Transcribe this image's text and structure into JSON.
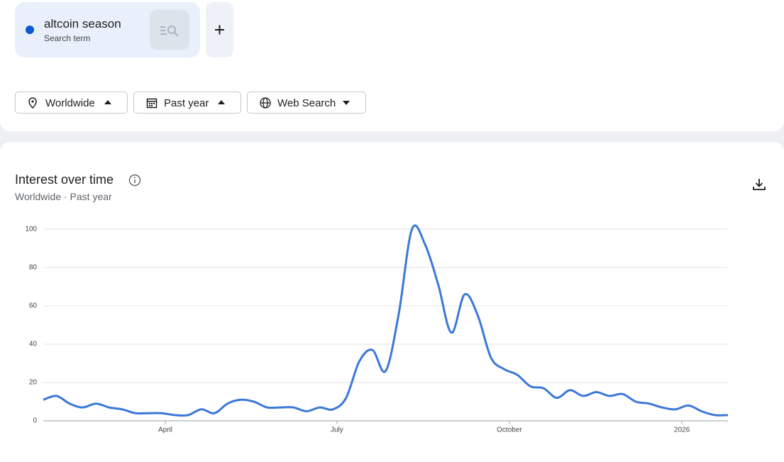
{
  "search": {
    "term": "altcoin season",
    "label": "Search term"
  },
  "filters": [
    "Worldwide",
    "Past year",
    "Web Search"
  ],
  "chart_data": {
    "type": "line",
    "title": "Interest over time",
    "subtitle": "Worldwide · Past year",
    "x": [
      0,
      1,
      2,
      3,
      4,
      5,
      6,
      7,
      8,
      9,
      10,
      11,
      12,
      13,
      14,
      15,
      16,
      17,
      18,
      19,
      20,
      21,
      22,
      23,
      24,
      25,
      26,
      27,
      28,
      29,
      30,
      31,
      32,
      33,
      34,
      35,
      36,
      37,
      38,
      39,
      40,
      41,
      42,
      43,
      44,
      45,
      46,
      47,
      48,
      49,
      50,
      51,
      52
    ],
    "series": [
      {
        "name": "altcoin season",
        "color": "#3b78d8",
        "values": [
          11,
          13,
          9,
          7,
          9,
          7,
          6,
          4,
          4,
          4,
          3,
          3,
          6,
          4,
          9,
          11,
          10,
          7,
          7,
          7,
          5,
          7,
          6,
          12,
          31,
          37,
          26,
          56,
          100,
          92,
          71,
          46,
          66,
          55,
          33,
          27,
          24,
          18,
          17,
          12,
          16,
          13,
          15,
          13,
          14,
          10,
          9,
          7,
          6,
          8,
          5,
          3,
          3
        ]
      }
    ],
    "xlim": [
      0,
      52
    ],
    "xticks": [
      {
        "value": 9.27,
        "label": "April"
      },
      {
        "value": 22.3,
        "label": "July"
      },
      {
        "value": 35.4,
        "label": "October"
      },
      {
        "value": 48.5,
        "label": "2026"
      }
    ],
    "ylim": [
      0,
      100
    ],
    "yticks": [
      0,
      20,
      40,
      60,
      80,
      100
    ],
    "grid": true
  }
}
